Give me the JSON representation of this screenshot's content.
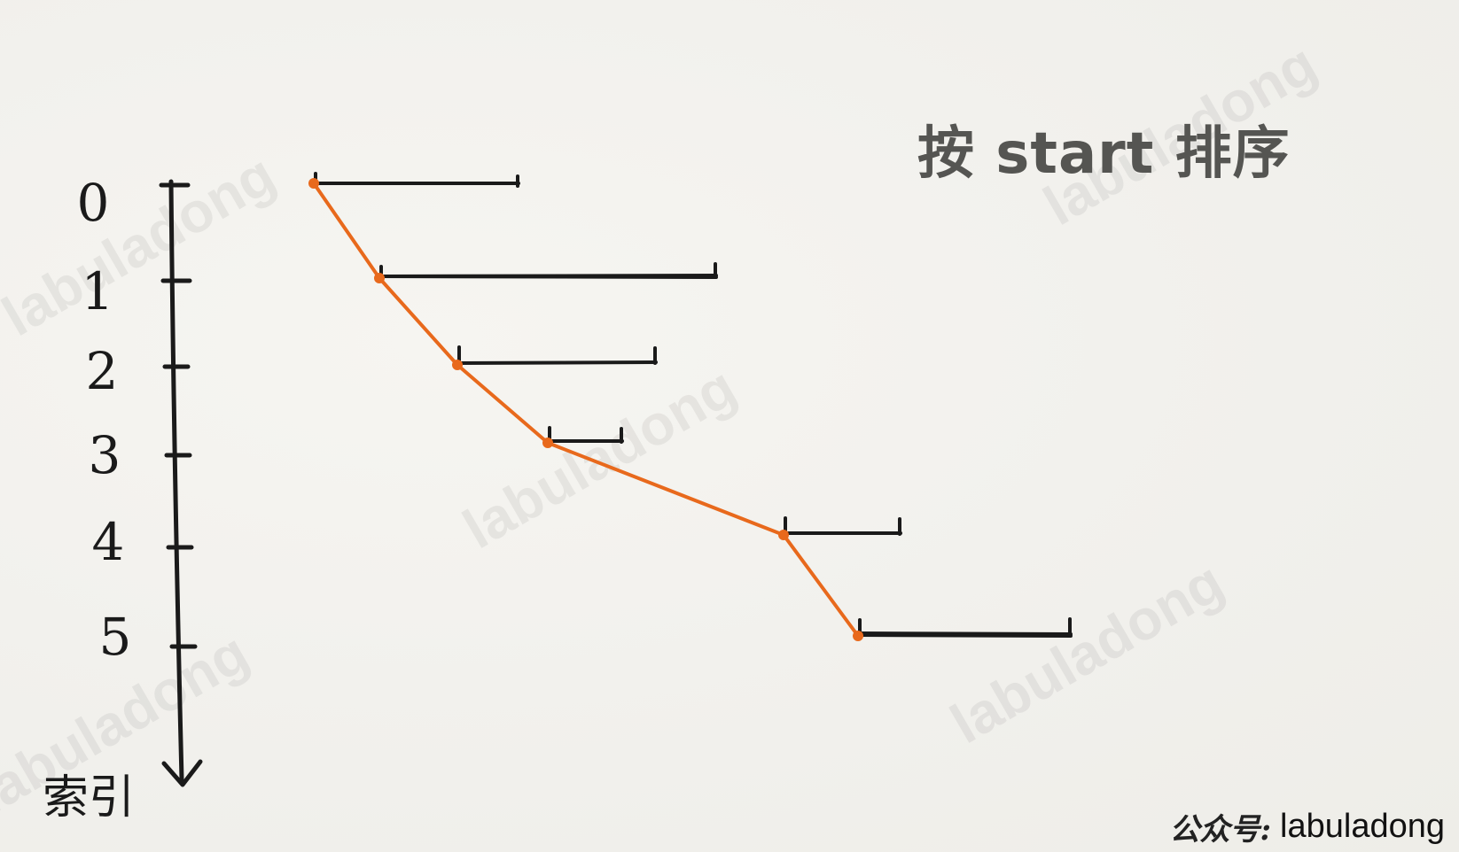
{
  "title": "按 start 排序",
  "axis": {
    "label": "索引",
    "indices": [
      "0",
      "1",
      "2",
      "3",
      "4",
      "5"
    ]
  },
  "intervals": [
    {
      "index": "0"
    },
    {
      "index": "1"
    },
    {
      "index": "2"
    },
    {
      "index": "3"
    },
    {
      "index": "4"
    },
    {
      "index": "5"
    }
  ],
  "watermark": "labuladong",
  "footer": {
    "prefix": "公众号:",
    "name": "labuladong"
  },
  "colors": {
    "line": "#e8691c",
    "ink": "#1a1a1a",
    "title": "#555552"
  }
}
